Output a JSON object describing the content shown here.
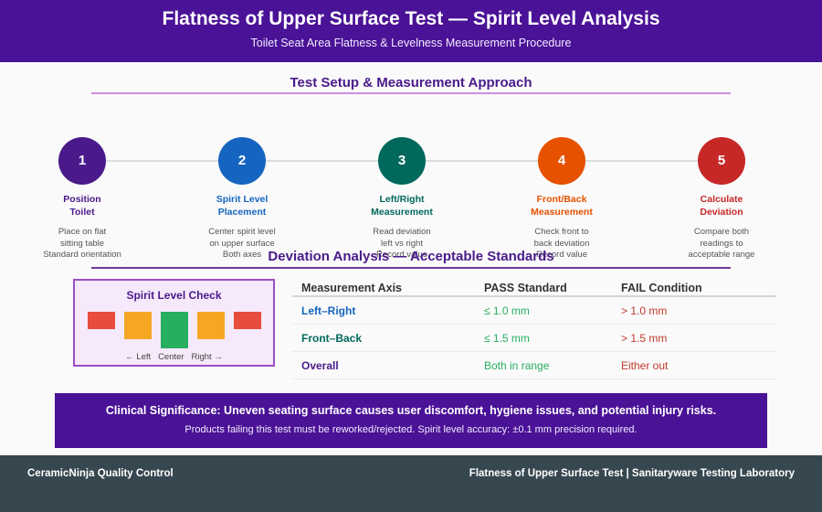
{
  "header": {
    "title": "Flatness of Upper Surface Test — Spirit Level Analysis",
    "subtitle": "Toilet Seat Area Flatness & Levelness Measurement Procedure"
  },
  "setup": {
    "title": "Test Setup & Measurement Approach",
    "rule_color": "#c98de0",
    "steps": [
      {
        "num": "1",
        "name_l1": "Position",
        "name_l2": "Toilet",
        "color": "#4a1a8a",
        "desc": [
          "Place on flat",
          "sitting table",
          "Standard orientation"
        ]
      },
      {
        "num": "2",
        "name_l1": "Spirit Level",
        "name_l2": "Placement",
        "color": "#1565c0",
        "desc": [
          "Center spirit level",
          "on upper surface",
          "Both axes"
        ]
      },
      {
        "num": "3",
        "name_l1": "Left/Right",
        "name_l2": "Measurement",
        "color": "#00695c",
        "desc": [
          "Read deviation",
          "left vs right",
          "Record value"
        ]
      },
      {
        "num": "4",
        "name_l1": "Front/Back",
        "name_l2": "Measurement",
        "color": "#e65100",
        "desc": [
          "Check front to",
          "back deviation",
          "Record value"
        ]
      },
      {
        "num": "5",
        "name_l1": "Calculate",
        "name_l2": "Deviation",
        "color": "#c62828",
        "desc": [
          "Compare both",
          "readings to",
          "acceptable range"
        ]
      }
    ]
  },
  "deviation": {
    "title": "Deviation Analysis — Acceptable Standards",
    "rule_color": "#6a3d9a"
  },
  "level_check": {
    "title": "Spirit Level Check",
    "blocks": [
      {
        "color": "#e74c3c",
        "level": "low"
      },
      {
        "color": "#f5a623",
        "level": "mid"
      },
      {
        "color": "#27ae60",
        "level": "high"
      },
      {
        "color": "#f5a623",
        "level": "mid"
      },
      {
        "color": "#e74c3c",
        "level": "low"
      }
    ],
    "labels": "← Left   Center   Right →"
  },
  "standards_table": {
    "headers": [
      "Measurement Axis",
      "PASS Standard",
      "FAIL Condition"
    ],
    "rows": [
      {
        "axis": "Left–Right",
        "axis_color": "#1565c0",
        "pass": "≤ 1.0 mm",
        "fail": "> 1.0 mm"
      },
      {
        "axis": "Front–Back",
        "axis_color": "#00695c",
        "pass": "≤ 1.5 mm",
        "fail": "> 1.5 mm"
      },
      {
        "axis": "Overall",
        "axis_color": "#4a1a8a",
        "pass": "Both in range",
        "fail": "Either out"
      }
    ],
    "pass_color": "#27ae60",
    "fail_color": "#c0392b"
  },
  "clinical": {
    "main": "Clinical Significance: Uneven seating surface causes user discomfort, hygiene issues, and potential injury risks.",
    "sub": "Products failing this test must be reworked/rejected. Spirit level accuracy: ±0.1 mm precision required."
  },
  "footer": {
    "left": "CeramicNinja Quality Control",
    "right": "Flatness of Upper Surface Test | Sanitaryware Testing Laboratory"
  }
}
